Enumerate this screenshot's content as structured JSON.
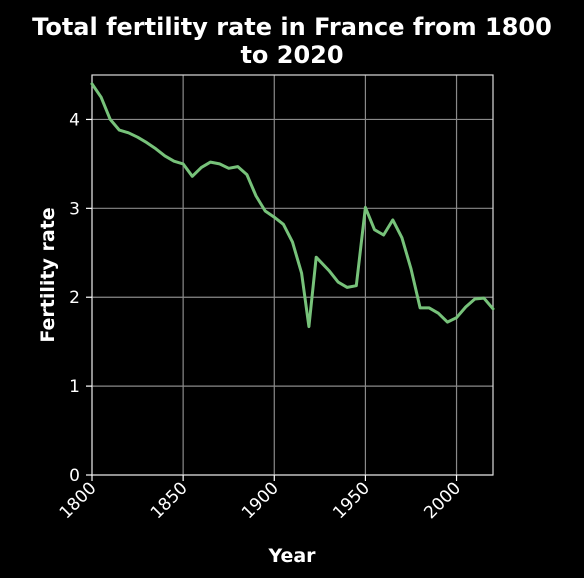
{
  "chart_data": {
    "type": "line",
    "title_lines": [
      "Total fertility rate in France from 1800",
      "to 2020"
    ],
    "xlabel": "Year",
    "ylabel": "Fertility rate",
    "xlim": [
      1800,
      2020
    ],
    "ylim": [
      0,
      4.5
    ],
    "xticks": [
      "1800",
      "1850",
      "1900",
      "1950",
      "2000"
    ],
    "yticks": [
      "0",
      "1",
      "2",
      "3",
      "4"
    ],
    "grid": true,
    "legend": "none",
    "series": [
      {
        "color": "#77c27a",
        "x": [
          1800,
          1805,
          1810,
          1815,
          1820,
          1825,
          1830,
          1835,
          1840,
          1845,
          1850,
          1855,
          1860,
          1865,
          1870,
          1875,
          1880,
          1885,
          1890,
          1895,
          1900,
          1905,
          1910,
          1915,
          1919,
          1923,
          1930,
          1935,
          1940,
          1945,
          1950,
          1955,
          1960,
          1965,
          1970,
          1975,
          1980,
          1985,
          1990,
          1995,
          2000,
          2005,
          2010,
          2015,
          2020
        ],
        "values": [
          4.4,
          4.25,
          4.0,
          3.88,
          3.85,
          3.8,
          3.74,
          3.67,
          3.59,
          3.53,
          3.5,
          3.36,
          3.46,
          3.52,
          3.5,
          3.45,
          3.47,
          3.38,
          3.14,
          2.97,
          2.9,
          2.82,
          2.62,
          2.27,
          1.67,
          2.45,
          2.3,
          2.17,
          2.11,
          2.13,
          3.01,
          2.76,
          2.7,
          2.87,
          2.67,
          2.32,
          1.88,
          1.88,
          1.82,
          1.72,
          1.77,
          1.89,
          1.98,
          1.99,
          1.87
        ]
      }
    ]
  }
}
